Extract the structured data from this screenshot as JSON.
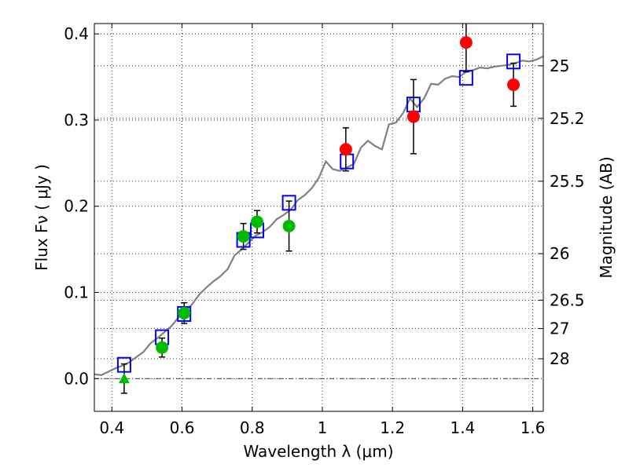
{
  "chart_data": {
    "type": "scatter",
    "xlabel": "Wavelength  λ (μm)",
    "ylabel": "Flux  Fν  ( μJy )",
    "y2label": "Magnitude (AB)",
    "xlim": [
      0.35,
      1.63
    ],
    "ylim": [
      -0.038,
      0.412
    ],
    "x_ticks": [
      0.4,
      0.6,
      0.8,
      1.0,
      1.2,
      1.4,
      1.6
    ],
    "x_tick_labels": [
      "0.4",
      "0.6",
      "0.8",
      "1",
      "1.2",
      "1.4",
      "1.6"
    ],
    "y_ticks": [
      0.0,
      0.1,
      0.2,
      0.3,
      0.4
    ],
    "y_tick_labels": [
      "0.0",
      "0.1",
      "0.2",
      "0.3",
      "0.4"
    ],
    "y2_ticks": [
      {
        "label": "25",
        "flux": 0.363
      },
      {
        "label": "25.2",
        "flux": 0.302
      },
      {
        "label": "25.5",
        "flux": 0.229
      },
      {
        "label": "26",
        "flux": 0.145
      },
      {
        "label": "26.5",
        "flux": 0.091
      },
      {
        "label": "27",
        "flux": 0.058
      },
      {
        "label": "28",
        "flux": 0.023
      }
    ],
    "grid": true,
    "series": [
      {
        "name": "model spectrum",
        "kind": "line",
        "color": "#808080",
        "x": [
          0.35,
          0.37,
          0.39,
          0.41,
          0.43,
          0.45,
          0.47,
          0.49,
          0.51,
          0.53,
          0.55,
          0.57,
          0.59,
          0.61,
          0.63,
          0.65,
          0.67,
          0.69,
          0.71,
          0.73,
          0.75,
          0.77,
          0.79,
          0.81,
          0.83,
          0.85,
          0.87,
          0.89,
          0.91,
          0.93,
          0.95,
          0.97,
          0.99,
          1.01,
          1.03,
          1.05,
          1.07,
          1.09,
          1.11,
          1.13,
          1.15,
          1.17,
          1.19,
          1.21,
          1.23,
          1.25,
          1.27,
          1.29,
          1.31,
          1.33,
          1.35,
          1.37,
          1.39,
          1.41,
          1.43,
          1.45,
          1.47,
          1.49,
          1.51,
          1.53,
          1.55,
          1.57,
          1.59,
          1.61,
          1.63
        ],
        "y": [
          0.005,
          0.004,
          0.008,
          0.012,
          0.015,
          0.019,
          0.025,
          0.031,
          0.041,
          0.047,
          0.054,
          0.061,
          0.071,
          0.078,
          0.087,
          0.098,
          0.106,
          0.113,
          0.119,
          0.127,
          0.143,
          0.15,
          0.158,
          0.166,
          0.17,
          0.176,
          0.185,
          0.19,
          0.196,
          0.207,
          0.213,
          0.221,
          0.233,
          0.252,
          0.243,
          0.241,
          0.245,
          0.249,
          0.268,
          0.276,
          0.27,
          0.266,
          0.295,
          0.297,
          0.308,
          0.325,
          0.315,
          0.325,
          0.342,
          0.341,
          0.348,
          0.351,
          0.35,
          0.356,
          0.358,
          0.361,
          0.36,
          0.362,
          0.363,
          0.364,
          0.366,
          0.369,
          0.368,
          0.37,
          0.374
        ]
      },
      {
        "name": "model photometry",
        "kind": "square",
        "color": "#0000ff",
        "x": [
          0.435,
          0.543,
          0.606,
          0.775,
          0.814,
          0.905,
          1.07,
          1.26,
          1.41,
          1.545
        ],
        "y": [
          0.016,
          0.048,
          0.075,
          0.161,
          0.172,
          0.204,
          0.252,
          0.318,
          0.349,
          0.368
        ]
      },
      {
        "name": "optical photometry",
        "kind": "circle",
        "color": "#00bb00",
        "x": [
          0.543,
          0.606,
          0.775,
          0.814,
          0.905
        ],
        "y": [
          0.036,
          0.076,
          0.165,
          0.182,
          0.177
        ],
        "yerr": [
          0.011,
          0.012,
          0.015,
          0.013,
          0.029
        ]
      },
      {
        "name": "upper limit",
        "kind": "triangle",
        "color": "#00bb00",
        "x": [
          0.435
        ],
        "y": [
          0.0
        ],
        "yerr": [
          0.017
        ]
      },
      {
        "name": "near-infrared photometry",
        "kind": "circle",
        "color": "#ff0000",
        "x": [
          1.067,
          1.26,
          1.41,
          1.545
        ],
        "y": [
          0.266,
          0.304,
          0.39,
          0.341
        ],
        "yerr": [
          0.025,
          0.043,
          0.034,
          0.025
        ]
      }
    ]
  }
}
